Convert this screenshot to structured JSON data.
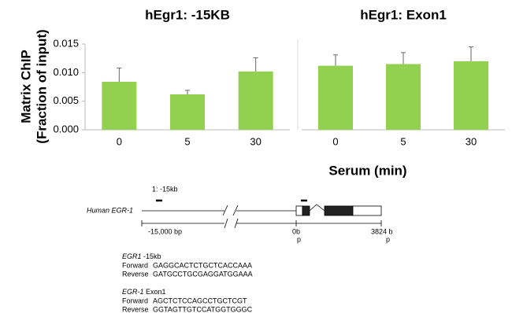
{
  "chart_data": [
    {
      "type": "bar",
      "title": "hEgr1: -15KB",
      "ylabel": [
        "Matrix ChIP",
        "(Fraction of input)"
      ],
      "categories": [
        "0",
        "5",
        "30"
      ],
      "values": [
        0.0084,
        0.0062,
        0.0102
      ],
      "errors": [
        0.0024,
        0.0007,
        0.0024
      ],
      "color": "#92d050",
      "ylim": [
        0,
        0.015
      ],
      "yticks": [
        {
          "value": 0,
          "label": "0.000"
        },
        {
          "value": 0.005,
          "label": "0.005"
        },
        {
          "value": 0.01,
          "label": "0.010"
        },
        {
          "value": 0.015,
          "label": "0.015"
        }
      ]
    },
    {
      "type": "bar",
      "title": "hEgr1: Exon1",
      "xlabel": "Serum (min)",
      "categories": [
        "0",
        "5",
        "30"
      ],
      "values": [
        0.0112,
        0.0115,
        0.012
      ],
      "errors": [
        0.0019,
        0.002,
        0.0025
      ],
      "color": "#92d050",
      "ylim": [
        0,
        0.015
      ]
    }
  ],
  "diagram": {
    "region_label": "1: -15kb",
    "gene_label": "Human EGR-1",
    "scale_labels": [
      "-15,000 bp",
      "0b",
      "p",
      "3824 b",
      "p"
    ]
  },
  "primers": [
    {
      "name": "EGR1",
      "suffix": " -15kb",
      "forward_label": "Forward",
      "forward": "GAGGCACTCTGCTCACCAAA",
      "reverse_label": "Reverse",
      "reverse": "GATGCCTGCGAGGATGGAAA"
    },
    {
      "name": "EGR-1",
      "suffix": " Exon1",
      "forward_label": "Forward",
      "forward": "AGCTCTCCAGCCTGCTCGT",
      "reverse_label": "Reverse",
      "reverse": "GGTAGTTGTCCATGGTGGGC"
    }
  ]
}
